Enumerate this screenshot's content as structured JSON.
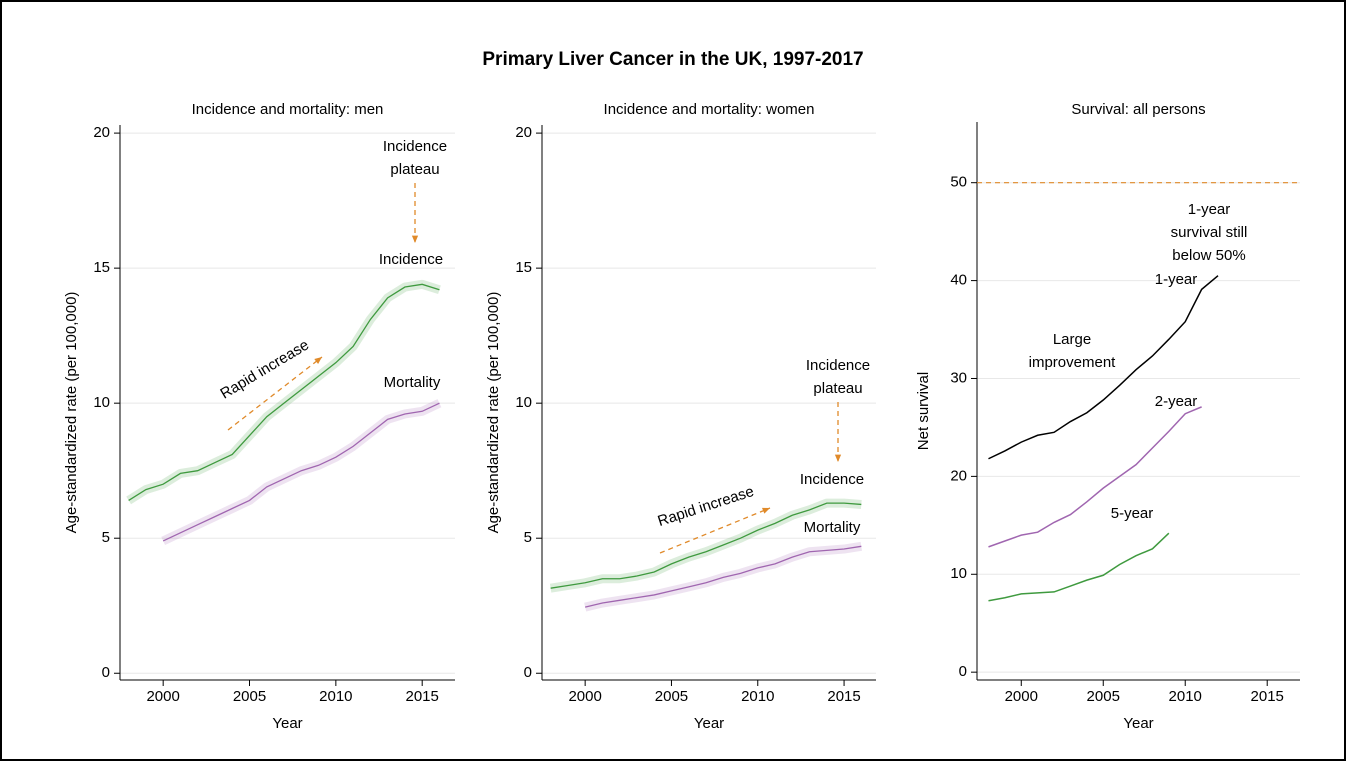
{
  "title": "Primary Liver Cancer in the UK, 1997-2017",
  "chart_data": [
    {
      "type": "line",
      "title": "Incidence and mortality: men",
      "xlabel": "Year",
      "ylabel": "Age-standardized rate (per 100,000)",
      "x": [
        1998,
        1999,
        2000,
        2001,
        2002,
        2003,
        2004,
        2005,
        2006,
        2007,
        2008,
        2009,
        2010,
        2011,
        2012,
        2013,
        2014,
        2015,
        2016
      ],
      "series": [
        {
          "name": "Incidence",
          "color": "#3f9a3f",
          "values": [
            6.4,
            6.8,
            7.0,
            7.4,
            7.5,
            7.8,
            8.1,
            8.8,
            9.5,
            10.0,
            10.5,
            11.0,
            11.5,
            12.1,
            13.1,
            13.9,
            14.3,
            14.4,
            14.2
          ]
        },
        {
          "name": "Mortality",
          "color": "#a066b0",
          "values": [
            null,
            null,
            4.9,
            5.2,
            5.5,
            5.8,
            6.1,
            6.4,
            6.9,
            7.2,
            7.5,
            7.7,
            8.0,
            8.4,
            8.9,
            9.4,
            9.6,
            9.7,
            10.0
          ]
        }
      ],
      "annotations": [
        {
          "text": [
            "Incidence",
            "plateau"
          ],
          "color": "#e08a2a"
        },
        {
          "text": [
            "Rapid increase"
          ],
          "color": "#e08a2a"
        }
      ],
      "xlim": [
        1997.5,
        2016.9
      ],
      "ylim": [
        -0.25,
        20.3
      ],
      "xticks": [
        2000,
        2005,
        2010,
        2015
      ],
      "yticks": [
        0,
        5,
        10,
        15,
        20
      ],
      "grid": true
    },
    {
      "type": "line",
      "title": "Incidence and mortality: women",
      "xlabel": "Year",
      "ylabel": "Age-standardized rate (per 100,000)",
      "x": [
        1998,
        1999,
        2000,
        2001,
        2002,
        2003,
        2004,
        2005,
        2006,
        2007,
        2008,
        2009,
        2010,
        2011,
        2012,
        2013,
        2014,
        2015,
        2016
      ],
      "series": [
        {
          "name": "Incidence",
          "color": "#3f9a3f",
          "values": [
            3.15,
            3.25,
            3.35,
            3.5,
            3.5,
            3.6,
            3.75,
            4.05,
            4.3,
            4.5,
            4.75,
            5.0,
            5.3,
            5.55,
            5.85,
            6.05,
            6.3,
            6.3,
            6.25
          ]
        },
        {
          "name": "Mortality",
          "color": "#a066b0",
          "values": [
            null,
            null,
            2.45,
            2.6,
            2.7,
            2.8,
            2.9,
            3.05,
            3.2,
            3.35,
            3.55,
            3.7,
            3.9,
            4.05,
            4.3,
            4.5,
            4.55,
            4.6,
            4.7
          ]
        }
      ],
      "annotations": [
        {
          "text": [
            "Incidence",
            "plateau"
          ],
          "color": "#e08a2a"
        },
        {
          "text": [
            "Rapid increase"
          ],
          "color": "#e08a2a"
        }
      ],
      "xlim": [
        1997.5,
        2016.85
      ],
      "ylim": [
        -0.25,
        20.3
      ],
      "xticks": [
        2000,
        2005,
        2010,
        2015
      ],
      "yticks": [
        0,
        5,
        10,
        15,
        20
      ],
      "grid": true
    },
    {
      "type": "line",
      "title": "Survival: all persons",
      "xlabel": "Year",
      "ylabel": "Net survival",
      "series": [
        {
          "name": "1-year",
          "color": "#000000",
          "x": [
            1998,
            1999,
            2000,
            2001,
            2002,
            2003,
            2004,
            2005,
            2006,
            2007,
            2008,
            2009,
            2010,
            2011,
            2012
          ],
          "values": [
            21.8,
            22.6,
            23.5,
            24.2,
            24.5,
            25.6,
            26.5,
            27.8,
            29.3,
            30.9,
            32.3,
            34.0,
            35.8,
            39.1,
            40.5
          ]
        },
        {
          "name": "2-year",
          "color": "#a066b0",
          "x": [
            1998,
            1999,
            2000,
            2001,
            2002,
            2003,
            2004,
            2005,
            2006,
            2007,
            2008,
            2009,
            2010,
            2011
          ],
          "values": [
            12.8,
            13.4,
            14.0,
            14.3,
            15.3,
            16.1,
            17.4,
            18.8,
            20.0,
            21.2,
            22.9,
            24.6,
            26.4,
            27.1
          ]
        },
        {
          "name": "5-year",
          "color": "#3f9a3f",
          "x": [
            1998,
            1999,
            2000,
            2001,
            2002,
            2003,
            2004,
            2005,
            2006,
            2007,
            2008,
            2009
          ],
          "values": [
            7.3,
            7.6,
            8.0,
            8.1,
            8.2,
            8.8,
            9.4,
            9.9,
            11.0,
            11.9,
            12.6,
            14.2
          ]
        }
      ],
      "reference_line": {
        "value": 50,
        "color": "#e08a2a",
        "dashed": true
      },
      "annotations": [
        {
          "text": [
            "1-year",
            "survival still",
            "below 50%"
          ],
          "color": "#e08a2a"
        },
        {
          "text": [
            "Large",
            "improvement"
          ],
          "color": "#e08a2a"
        }
      ],
      "xlim": [
        1997.3,
        2017
      ],
      "ylim": [
        -0.8,
        56.2
      ],
      "xticks": [
        2000,
        2005,
        2010,
        2015
      ],
      "yticks": [
        0,
        10,
        20,
        30,
        40,
        50
      ],
      "grid": true
    }
  ]
}
